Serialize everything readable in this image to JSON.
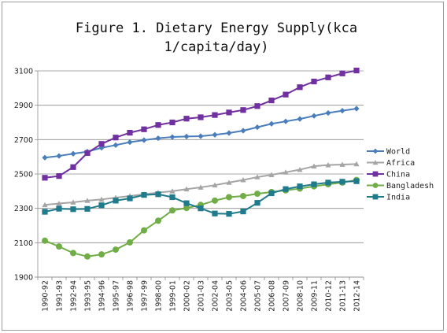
{
  "chart_data": {
    "type": "line",
    "title": "Figure 1. Dietary Energy Supply(kca\n1/capita/day)",
    "xlabel": "",
    "ylabel": "",
    "ylim": [
      1900,
      3100
    ],
    "yticks": [
      1900,
      2100,
      2300,
      2500,
      2700,
      2900,
      3100
    ],
    "grid": true,
    "legend_position": "right",
    "categories": [
      "1990-92",
      "1991-93",
      "1992-94",
      "1993-95",
      "1994-96",
      "1995-97",
      "1996-98",
      "1997-99",
      "1998-00",
      "1999-01",
      "2000-02",
      "2001-03",
      "2002-04",
      "2003-05",
      "2004-06",
      "2005-07",
      "2006-08",
      "2007-09",
      "2008-10",
      "2009-11",
      "2010-12",
      "2011-13",
      "2012-14"
    ],
    "series": [
      {
        "name": "World",
        "color": "#4a7ebb",
        "marker": "diamond",
        "values": [
          2595,
          2605,
          2618,
          2630,
          2652,
          2668,
          2685,
          2697,
          2708,
          2715,
          2718,
          2720,
          2728,
          2738,
          2752,
          2772,
          2792,
          2806,
          2820,
          2838,
          2855,
          2868,
          2880
        ]
      },
      {
        "name": "Africa",
        "color": "#a5a5a5",
        "marker": "triangle",
        "values": [
          2320,
          2328,
          2335,
          2345,
          2352,
          2362,
          2372,
          2382,
          2392,
          2400,
          2412,
          2422,
          2435,
          2450,
          2465,
          2482,
          2495,
          2510,
          2525,
          2545,
          2552,
          2555,
          2558
        ]
      },
      {
        "name": "China",
        "color": "#7030a0",
        "marker": "square",
        "values": [
          2478,
          2488,
          2540,
          2622,
          2675,
          2712,
          2740,
          2760,
          2785,
          2800,
          2822,
          2830,
          2843,
          2858,
          2872,
          2895,
          2928,
          2962,
          3005,
          3038,
          3062,
          3085,
          3102
        ]
      },
      {
        "name": "Bangladesh",
        "color": "#70ad47",
        "marker": "circle",
        "values": [
          2112,
          2078,
          2040,
          2020,
          2032,
          2060,
          2102,
          2172,
          2228,
          2288,
          2302,
          2320,
          2345,
          2365,
          2372,
          2385,
          2395,
          2405,
          2415,
          2428,
          2440,
          2450,
          2465
        ]
      },
      {
        "name": "India",
        "color": "#1f7a8c",
        "marker": "square",
        "values": [
          2280,
          2298,
          2295,
          2297,
          2318,
          2345,
          2358,
          2378,
          2382,
          2365,
          2330,
          2300,
          2270,
          2268,
          2282,
          2332,
          2388,
          2412,
          2428,
          2440,
          2450,
          2455,
          2458
        ]
      }
    ]
  }
}
